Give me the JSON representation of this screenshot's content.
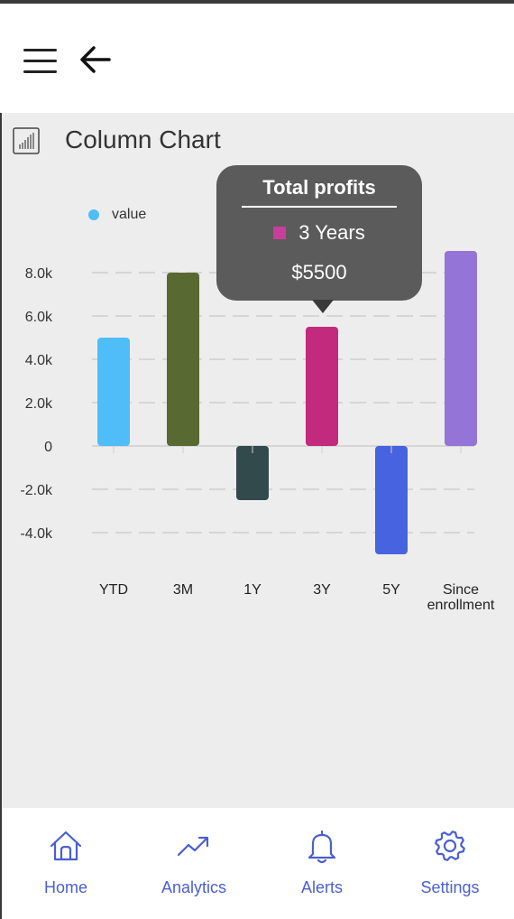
{
  "title": "Column Chart",
  "tooltip": {
    "title": "Total profits",
    "series": "3 Years",
    "value": "$5500",
    "swatch_color": "#c83e9a"
  },
  "chart_data": {
    "type": "bar",
    "categories": [
      "YTD",
      "3M",
      "1Y",
      "3Y",
      "5Y",
      "Since enrollment"
    ],
    "category_lines": [
      [
        "YTD"
      ],
      [
        "3M"
      ],
      [
        "1Y"
      ],
      [
        "3Y"
      ],
      [
        "5Y"
      ],
      [
        "Since",
        "enrollment"
      ]
    ],
    "series": [
      {
        "name": "value",
        "values": [
          5000,
          8000,
          -2500,
          5500,
          -5000,
          9000
        ]
      }
    ],
    "colors": [
      "#4fbdf7",
      "#586a31",
      "#324a4b",
      "#c12a7d",
      "#4763df",
      "#9474d7"
    ],
    "legend_color": "#4fbdf7",
    "ylim": [
      -5000,
      9000
    ],
    "yticks": [
      -4000,
      -2000,
      0,
      2000,
      4000,
      6000,
      8000
    ],
    "ytick_labels": [
      "-4.0k",
      "-2.0k",
      "0",
      "2.0k",
      "4.0k",
      "6.0k",
      "8.0k"
    ],
    "grid": true,
    "legend_position": "top-left"
  },
  "nav": {
    "items": [
      {
        "label": "Home",
        "icon": "home-icon"
      },
      {
        "label": "Analytics",
        "icon": "trending-up-icon"
      },
      {
        "label": "Alerts",
        "icon": "bell-icon"
      },
      {
        "label": "Settings",
        "icon": "gear-icon"
      }
    ],
    "color": "#4a5fd1"
  }
}
